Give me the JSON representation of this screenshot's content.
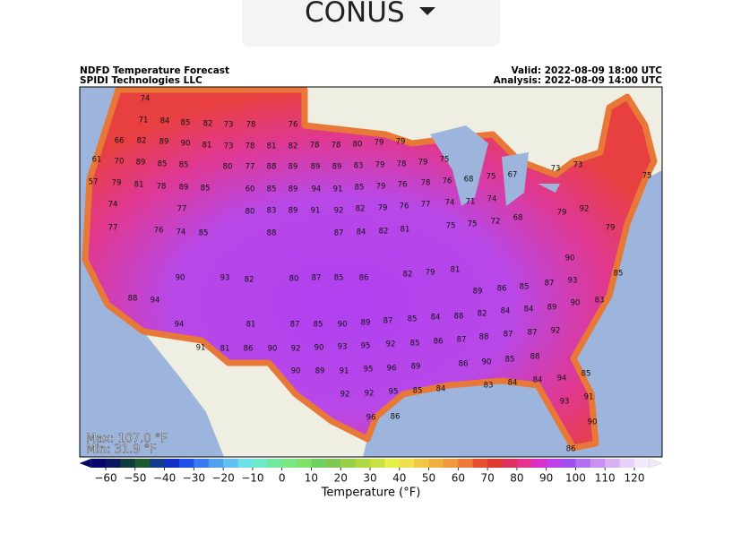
{
  "dropdown": {
    "label": "CONUS"
  },
  "map": {
    "title": "NDFD Temperature Forecast",
    "source": "SPIDI Technologies LLC",
    "valid": "Valid: 2022-08-09 18:00 UTC",
    "analysis": "Analysis: 2022-08-09 14:00 UTC",
    "max": "Max: 107.0 °F",
    "min": "Min: 31.9 °F",
    "labels": [
      74,
      71,
      84,
      85,
      82,
      73,
      78,
      76,
      66,
      82,
      89,
      90,
      81,
      73,
      78,
      81,
      82,
      78,
      78,
      80,
      79,
      79,
      61,
      70,
      89,
      85,
      85,
      80,
      77,
      88,
      89,
      89,
      89,
      83,
      79,
      78,
      79,
      75,
      57,
      79,
      81,
      78,
      89,
      85,
      60,
      85,
      89,
      94,
      91,
      85,
      79,
      76,
      78,
      76,
      68,
      75,
      67,
      73,
      73,
      75,
      74,
      77,
      80,
      83,
      89,
      91,
      92,
      82,
      79,
      76,
      77,
      74,
      71,
      74,
      79,
      92,
      77,
      76,
      74,
      85,
      88,
      87,
      84,
      82,
      81,
      75,
      75,
      72,
      68,
      79,
      94,
      88,
      90,
      93,
      82,
      80,
      87,
      85,
      86,
      82,
      79,
      81,
      89,
      86,
      85,
      87,
      93,
      90,
      85,
      83,
      94,
      81,
      87,
      85,
      90,
      89,
      87,
      85,
      84,
      88,
      82,
      84,
      84,
      89,
      90,
      91,
      81,
      86,
      90,
      92,
      90,
      93,
      95,
      92,
      85,
      86,
      87,
      88,
      87,
      87,
      92,
      90,
      89,
      91,
      95,
      96,
      89,
      86,
      90,
      85,
      88,
      94,
      85,
      92,
      92,
      95,
      85,
      84,
      83,
      84,
      84,
      93,
      91,
      96,
      86,
      90,
      86
    ]
  },
  "colorbar": {
    "lim": [
      -65,
      125
    ],
    "ticks": [
      {
        "value": -60,
        "label": "−60"
      },
      {
        "value": -50,
        "label": "−50"
      },
      {
        "value": -40,
        "label": "−40"
      },
      {
        "value": -30,
        "label": "−30"
      },
      {
        "value": -20,
        "label": "−20"
      },
      {
        "value": -10,
        "label": "−10"
      },
      0,
      10,
      20,
      30,
      40,
      50,
      60,
      70,
      80,
      90,
      100,
      110,
      120
    ],
    "label": "Temperature (°F)",
    "colors": [
      "#08086a",
      "#0a1660",
      "#113a3a",
      "#1a5a32",
      "#143c8c",
      "#1030c8",
      "#2050e8",
      "#3a78f0",
      "#50a0f0",
      "#60c0f0",
      "#70e0e8",
      "#70e8c8",
      "#70e8a0",
      "#78e880",
      "#80e068",
      "#70d060",
      "#80c850",
      "#98d048",
      "#b0d840",
      "#c8e040",
      "#e8f048",
      "#f0e050",
      "#f0c848",
      "#f0b040",
      "#f09840",
      "#f07838",
      "#e85030",
      "#e03830",
      "#e03060",
      "#e83090",
      "#d830c8",
      "#c040e8",
      "#a050f0",
      "#b070f0",
      "#c890f0",
      "#d8b0f0",
      "#e8d0f8",
      "#f4e8fc"
    ]
  }
}
